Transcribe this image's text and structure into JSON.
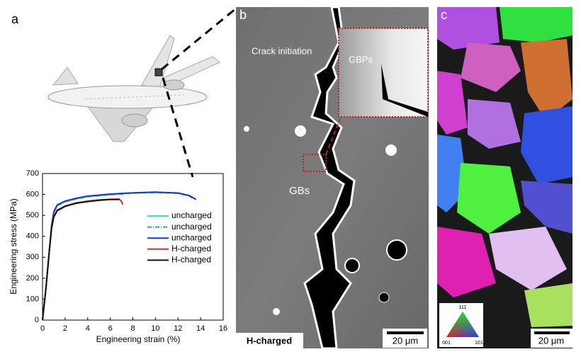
{
  "panels": {
    "a": {
      "label": "a"
    },
    "b": {
      "label": "b",
      "annotations": [
        "Crack initiation",
        "GBPs",
        "GBs"
      ],
      "caption": "H-charged",
      "scale_bar": "20 μm"
    },
    "c": {
      "label": "c",
      "ipf_labels": [
        "111",
        "001",
        "101"
      ],
      "scale_bar": "20 μm"
    }
  },
  "chart_data": {
    "type": "line",
    "x_label": "Engineering strain (%)",
    "y_label": "Engineering stress (MPa)",
    "xlim": [
      0,
      16
    ],
    "xticks": [
      0,
      2,
      4,
      6,
      8,
      10,
      12,
      14,
      16
    ],
    "ylim": [
      0,
      700
    ],
    "yticks": [
      0,
      100,
      200,
      300,
      400,
      500,
      600,
      700
    ],
    "legend": "right",
    "series": [
      {
        "name": "uncharged",
        "color": "#3cd8d8",
        "dash": "solid",
        "x": [
          0,
          0.3,
          0.6,
          0.8,
          1.0,
          1.3,
          2,
          3,
          4,
          6,
          8,
          10,
          12,
          13,
          13.5
        ],
        "values": [
          0,
          150,
          330,
          450,
          515,
          548,
          566,
          580,
          590,
          600,
          607,
          610,
          606,
          594,
          580
        ]
      },
      {
        "name": "uncharged",
        "color": "#2aa4b4",
        "dash": "dashdot",
        "x": [
          0,
          0.3,
          0.6,
          0.8,
          1.0,
          1.3,
          2,
          3,
          4,
          6,
          8,
          10,
          12,
          13,
          13.4
        ],
        "values": [
          0,
          150,
          330,
          448,
          512,
          546,
          565,
          579,
          589,
          599,
          606,
          609,
          605,
          592,
          578
        ]
      },
      {
        "name": "uncharged",
        "color": "#2038c0",
        "dash": "solid",
        "x": [
          0,
          0.3,
          0.6,
          0.8,
          1.0,
          1.3,
          2,
          3,
          4,
          6,
          8,
          10,
          12,
          13,
          13.6
        ],
        "values": [
          0,
          150,
          330,
          452,
          518,
          550,
          568,
          582,
          592,
          602,
          608,
          611,
          607,
          595,
          576
        ]
      },
      {
        "name": "H-charged",
        "color": "#d03030",
        "dash": "solid",
        "x": [
          0,
          0.3,
          0.6,
          0.8,
          1.0,
          1.3,
          2,
          3,
          4,
          5,
          6,
          6.8,
          7.0,
          7.1
        ],
        "values": [
          0,
          150,
          330,
          440,
          495,
          525,
          545,
          560,
          568,
          574,
          577,
          578,
          566,
          552
        ]
      },
      {
        "name": "H-charged",
        "color": "#111111",
        "dash": "solid",
        "x": [
          0,
          0.3,
          0.6,
          0.8,
          1.0,
          1.3,
          2,
          3,
          4,
          5,
          6,
          6.8
        ],
        "values": [
          0,
          150,
          330,
          438,
          492,
          522,
          543,
          558,
          566,
          572,
          576,
          576
        ]
      }
    ]
  }
}
